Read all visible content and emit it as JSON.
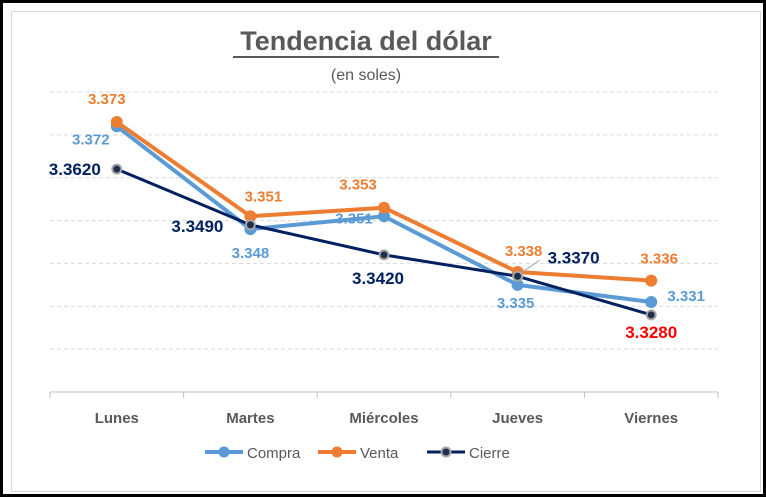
{
  "chart_data": {
    "type": "line",
    "title": "Tendencia del dólar",
    "subtitle": "(en soles)",
    "categories": [
      "Lunes",
      "Martes",
      "Miércoles",
      "Jueves",
      "Viernes"
    ],
    "series": [
      {
        "name": "Compra",
        "color": "#5B9BD5",
        "values": [
          3.372,
          3.348,
          3.351,
          3.335,
          3.331
        ],
        "labels": [
          "3.372",
          "3.348",
          "3.351",
          "3.335",
          "3.331"
        ]
      },
      {
        "name": "Venta",
        "color": "#ED7D31",
        "values": [
          3.373,
          3.351,
          3.353,
          3.338,
          3.336
        ],
        "labels": [
          "3.373",
          "3.351",
          "3.353",
          "3.338",
          "3.336"
        ]
      },
      {
        "name": "Cierre",
        "color": "#002060",
        "values": [
          3.362,
          3.349,
          3.342,
          3.337,
          3.328
        ],
        "labels": [
          "3.3620",
          "3.3490",
          "3.3420",
          "3.3370",
          "3.3280"
        ],
        "highlight_color": "#FF0000",
        "highlight_index": 4
      }
    ],
    "ylim": [
      3.31,
      3.38
    ],
    "grid": true,
    "legend": "bottom"
  }
}
